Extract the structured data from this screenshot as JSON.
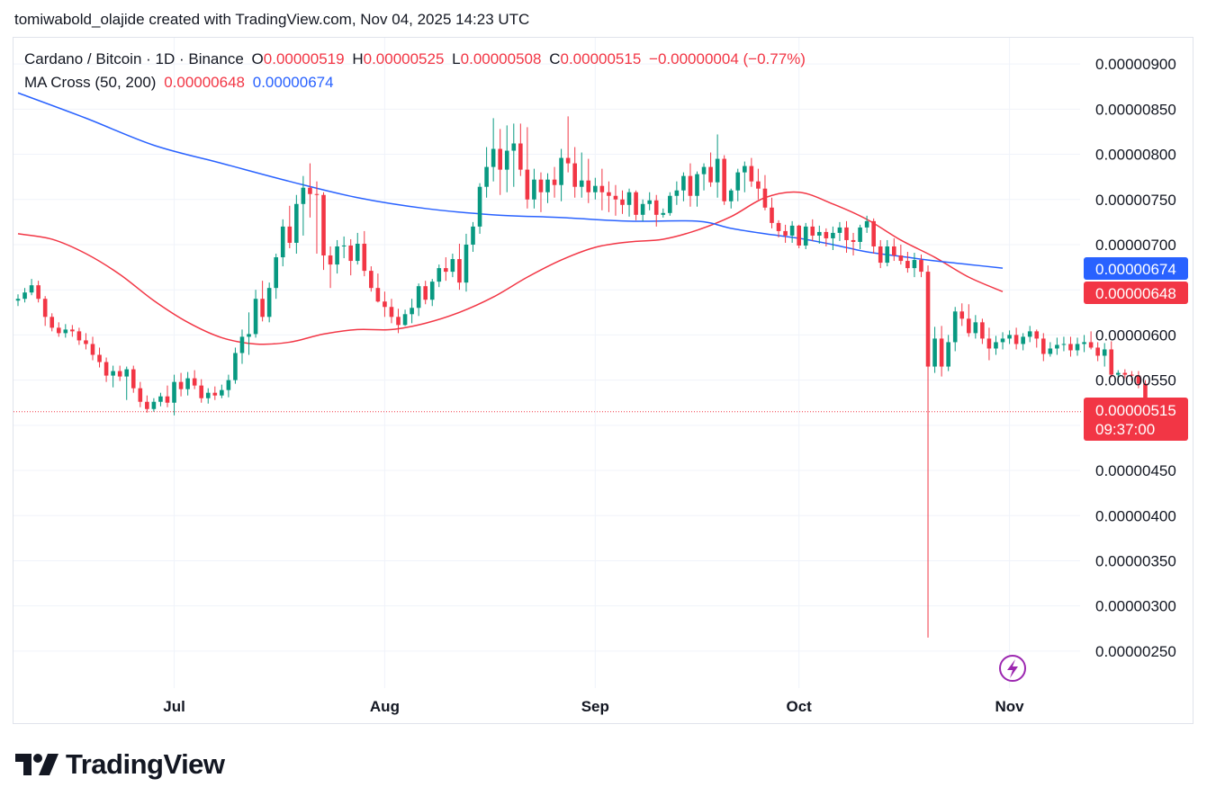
{
  "header": {
    "credit": "tomiwabold_olajide created with TradingView.com, Nov 04, 2025 14:23 UTC"
  },
  "legend": {
    "symbol": "Cardano / Bitcoin · 1D · Binance",
    "open_label": "O",
    "open": "0.00000519",
    "high_label": "H",
    "high": "0.00000525",
    "low_label": "L",
    "low": "0.00000508",
    "close_label": "C",
    "close": "0.00000515",
    "change": "−0.00000004 (−0.77%)",
    "indicator": "MA Cross (50, 200)",
    "ma50": "0.00000648",
    "ma200": "0.00000674"
  },
  "tags": {
    "ma200": "0.00000674",
    "ma50": "0.00000648",
    "last_price": "0.00000515",
    "countdown": "09:37:00"
  },
  "colors": {
    "up": "#089981",
    "down": "#f23645",
    "ma50": "#f23645",
    "ma200": "#2962ff",
    "grid": "#f0f3fa"
  },
  "brand": {
    "name": "TradingView"
  },
  "chart_data": {
    "type": "candlestick",
    "x_ticks": [
      {
        "label": "Jul",
        "day": 23
      },
      {
        "label": "Aug",
        "day": 54
      },
      {
        "label": "Sep",
        "day": 85
      },
      {
        "label": "Oct",
        "day": 115
      },
      {
        "label": "Nov",
        "day": 146
      }
    ],
    "y_ticks": [
      "0.00000900",
      "0.00000850",
      "0.00000800",
      "0.00000750",
      "0.00000700",
      "0.00000650",
      "0.00000600",
      "0.00000550",
      "0.00000500",
      "0.00000450",
      "0.00000400",
      "0.00000350",
      "0.00000300",
      "0.00000250"
    ],
    "y_tick_values": [
      900,
      850,
      800,
      750,
      700,
      650,
      600,
      550,
      500,
      450,
      400,
      350,
      300,
      250
    ],
    "y_hidden_ticks": [
      650,
      500
    ],
    "ylim": [
      224,
      930
    ],
    "unit_scale": "values in units of 1e-8 BTC",
    "last_price": 515,
    "candles": [
      [
        638,
        645,
        632,
        640
      ],
      [
        640,
        652,
        636,
        647
      ],
      [
        647,
        662,
        644,
        655
      ],
      [
        655,
        660,
        636,
        640
      ],
      [
        640,
        643,
        610,
        620
      ],
      [
        620,
        624,
        604,
        608
      ],
      [
        608,
        614,
        598,
        602
      ],
      [
        602,
        612,
        597,
        606
      ],
      [
        606,
        611,
        598,
        604
      ],
      [
        604,
        608,
        589,
        594
      ],
      [
        594,
        602,
        584,
        590
      ],
      [
        590,
        598,
        572,
        578
      ],
      [
        578,
        586,
        564,
        570
      ],
      [
        570,
        575,
        548,
        555
      ],
      [
        555,
        566,
        542,
        560
      ],
      [
        560,
        566,
        549,
        554
      ],
      [
        554,
        565,
        528,
        562
      ],
      [
        562,
        566,
        536,
        541
      ],
      [
        541,
        548,
        520,
        526
      ],
      [
        526,
        533,
        514,
        518
      ],
      [
        518,
        530,
        515,
        526
      ],
      [
        526,
        536,
        521,
        532
      ],
      [
        532,
        544,
        520,
        525
      ],
      [
        525,
        556,
        511,
        548
      ],
      [
        548,
        558,
        532,
        540
      ],
      [
        540,
        559,
        533,
        552
      ],
      [
        552,
        561,
        540,
        544
      ],
      [
        544,
        551,
        525,
        530
      ],
      [
        530,
        541,
        524,
        536
      ],
      [
        536,
        543,
        528,
        533
      ],
      [
        533,
        545,
        530,
        539
      ],
      [
        539,
        556,
        531,
        550
      ],
      [
        550,
        586,
        546,
        580
      ],
      [
        580,
        606,
        568,
        598
      ],
      [
        598,
        625,
        578,
        601
      ],
      [
        601,
        650,
        597,
        640
      ],
      [
        640,
        660,
        615,
        620
      ],
      [
        620,
        658,
        614,
        652
      ],
      [
        652,
        690,
        640,
        686
      ],
      [
        686,
        728,
        676,
        720
      ],
      [
        720,
        743,
        696,
        702
      ],
      [
        702,
        755,
        690,
        745
      ],
      [
        745,
        776,
        710,
        763
      ],
      [
        763,
        790,
        730,
        756
      ],
      [
        756,
        770,
        690,
        755
      ],
      [
        755,
        758,
        672,
        688
      ],
      [
        688,
        698,
        652,
        678
      ],
      [
        678,
        705,
        668,
        698
      ],
      [
        698,
        709,
        685,
        699
      ],
      [
        699,
        706,
        666,
        682
      ],
      [
        682,
        713,
        678,
        701
      ],
      [
        701,
        715,
        665,
        671
      ],
      [
        671,
        676,
        648,
        652
      ],
      [
        652,
        668,
        636,
        637
      ],
      [
        637,
        648,
        620,
        631
      ],
      [
        631,
        640,
        613,
        620
      ],
      [
        620,
        629,
        602,
        611
      ],
      [
        611,
        628,
        610,
        623
      ],
      [
        623,
        640,
        613,
        630
      ],
      [
        630,
        657,
        621,
        654
      ],
      [
        654,
        660,
        634,
        639
      ],
      [
        639,
        662,
        632,
        659
      ],
      [
        659,
        678,
        653,
        674
      ],
      [
        674,
        686,
        660,
        670
      ],
      [
        670,
        690,
        664,
        684
      ],
      [
        684,
        701,
        650,
        658
      ],
      [
        658,
        712,
        648,
        700
      ],
      [
        700,
        725,
        692,
        720
      ],
      [
        720,
        768,
        712,
        764
      ],
      [
        764,
        808,
        752,
        786
      ],
      [
        786,
        840,
        770,
        806
      ],
      [
        806,
        828,
        755,
        783
      ],
      [
        783,
        832,
        758,
        804
      ],
      [
        804,
        834,
        764,
        812
      ],
      [
        812,
        834,
        776,
        783
      ],
      [
        783,
        830,
        740,
        750
      ],
      [
        750,
        784,
        740,
        772
      ],
      [
        772,
        780,
        736,
        758
      ],
      [
        758,
        779,
        746,
        772
      ],
      [
        772,
        786,
        752,
        766
      ],
      [
        766,
        806,
        748,
        796
      ],
      [
        796,
        842,
        780,
        790
      ],
      [
        790,
        808,
        752,
        764
      ],
      [
        764,
        802,
        752,
        771
      ],
      [
        771,
        795,
        746,
        758
      ],
      [
        758,
        774,
        750,
        765
      ],
      [
        765,
        784,
        738,
        758
      ],
      [
        758,
        770,
        736,
        754
      ],
      [
        754,
        766,
        732,
        750
      ],
      [
        750,
        760,
        734,
        744
      ],
      [
        744,
        762,
        731,
        758
      ],
      [
        758,
        760,
        727,
        733
      ],
      [
        733,
        750,
        726,
        745
      ],
      [
        745,
        758,
        738,
        749
      ],
      [
        749,
        755,
        720,
        733
      ],
      [
        733,
        740,
        730,
        735
      ],
      [
        735,
        758,
        732,
        754
      ],
      [
        754,
        770,
        744,
        760
      ],
      [
        760,
        780,
        748,
        776
      ],
      [
        776,
        790,
        742,
        754
      ],
      [
        754,
        781,
        742,
        778
      ],
      [
        778,
        790,
        760,
        786
      ],
      [
        786,
        802,
        764,
        769
      ],
      [
        769,
        822,
        752,
        795
      ],
      [
        795,
        799,
        744,
        748
      ],
      [
        748,
        762,
        740,
        760
      ],
      [
        760,
        784,
        748,
        780
      ],
      [
        780,
        792,
        758,
        787
      ],
      [
        787,
        796,
        764,
        770
      ],
      [
        770,
        784,
        750,
        762
      ],
      [
        762,
        777,
        738,
        741
      ],
      [
        741,
        752,
        718,
        724
      ],
      [
        724,
        727,
        708,
        715
      ],
      [
        715,
        722,
        702,
        710
      ],
      [
        710,
        726,
        702,
        721
      ],
      [
        721,
        722,
        696,
        699
      ],
      [
        699,
        724,
        695,
        720
      ],
      [
        720,
        728,
        704,
        710
      ],
      [
        710,
        721,
        701,
        714
      ],
      [
        714,
        718,
        698,
        707
      ],
      [
        707,
        720,
        694,
        713
      ],
      [
        713,
        725,
        704,
        719
      ],
      [
        719,
        726,
        691,
        705
      ],
      [
        705,
        713,
        688,
        703
      ],
      [
        703,
        722,
        695,
        719
      ],
      [
        719,
        732,
        713,
        726
      ],
      [
        726,
        729,
        690,
        698
      ],
      [
        698,
        705,
        674,
        680
      ],
      [
        680,
        705,
        676,
        698
      ],
      [
        698,
        707,
        682,
        688
      ],
      [
        688,
        700,
        678,
        682
      ],
      [
        682,
        692,
        669,
        674
      ],
      [
        674,
        691,
        664,
        683
      ],
      [
        683,
        689,
        664,
        670
      ],
      [
        670,
        677,
        265,
        565
      ],
      [
        565,
        609,
        558,
        596
      ],
      [
        596,
        610,
        554,
        565
      ],
      [
        565,
        600,
        560,
        592
      ],
      [
        592,
        631,
        582,
        626
      ],
      [
        626,
        635,
        610,
        618
      ],
      [
        618,
        634,
        598,
        602
      ],
      [
        602,
        622,
        596,
        614
      ],
      [
        614,
        618,
        590,
        596
      ],
      [
        596,
        608,
        572,
        585
      ],
      [
        585,
        599,
        578,
        592
      ],
      [
        592,
        603,
        584,
        596
      ],
      [
        596,
        605,
        590,
        600
      ],
      [
        600,
        608,
        584,
        590
      ],
      [
        590,
        602,
        583,
        598
      ],
      [
        598,
        610,
        592,
        604
      ],
      [
        604,
        606,
        586,
        596
      ],
      [
        596,
        602,
        571,
        579
      ],
      [
        579,
        592,
        576,
        585
      ],
      [
        585,
        597,
        578,
        589
      ],
      [
        589,
        598,
        582,
        590
      ],
      [
        590,
        598,
        576,
        583
      ],
      [
        583,
        597,
        577,
        590
      ],
      [
        590,
        600,
        581,
        592
      ],
      [
        592,
        604,
        584,
        586
      ],
      [
        586,
        592,
        571,
        577
      ],
      [
        577,
        591,
        565,
        584
      ],
      [
        584,
        593,
        553,
        556
      ],
      [
        556,
        561,
        549,
        558
      ],
      [
        558,
        562,
        552,
        556
      ],
      [
        556,
        560,
        549,
        555
      ],
      [
        555,
        560,
        541,
        546
      ],
      [
        546,
        550,
        511,
        520
      ],
      [
        519,
        525,
        508,
        515
      ]
    ],
    "series": [
      {
        "name": "MA 50",
        "color": "#f23645",
        "points": [
          [
            0,
            712
          ],
          [
            5,
            706
          ],
          [
            10,
            690
          ],
          [
            15,
            667
          ],
          [
            20,
            638
          ],
          [
            25,
            614
          ],
          [
            30,
            597
          ],
          [
            35,
            590
          ],
          [
            40,
            592
          ],
          [
            45,
            601
          ],
          [
            50,
            606
          ],
          [
            55,
            606
          ],
          [
            60,
            613
          ],
          [
            65,
            625
          ],
          [
            70,
            642
          ],
          [
            75,
            664
          ],
          [
            80,
            683
          ],
          [
            85,
            697
          ],
          [
            90,
            703
          ],
          [
            95,
            706
          ],
          [
            100,
            716
          ],
          [
            105,
            731
          ],
          [
            110,
            752
          ],
          [
            115,
            758
          ],
          [
            120,
            745
          ],
          [
            125,
            728
          ],
          [
            130,
            705
          ],
          [
            135,
            686
          ],
          [
            140,
            664
          ],
          [
            145,
            648
          ]
        ]
      },
      {
        "name": "MA 200",
        "color": "#2962ff",
        "points": [
          [
            0,
            868
          ],
          [
            10,
            840
          ],
          [
            20,
            810
          ],
          [
            30,
            790
          ],
          [
            40,
            770
          ],
          [
            50,
            752
          ],
          [
            60,
            740
          ],
          [
            70,
            733
          ],
          [
            80,
            730
          ],
          [
            90,
            726
          ],
          [
            100,
            726
          ],
          [
            105,
            718
          ],
          [
            110,
            712
          ],
          [
            115,
            707
          ],
          [
            120,
            700
          ],
          [
            125,
            692
          ],
          [
            130,
            687
          ],
          [
            135,
            682
          ],
          [
            140,
            678
          ],
          [
            145,
            674
          ]
        ]
      }
    ]
  }
}
